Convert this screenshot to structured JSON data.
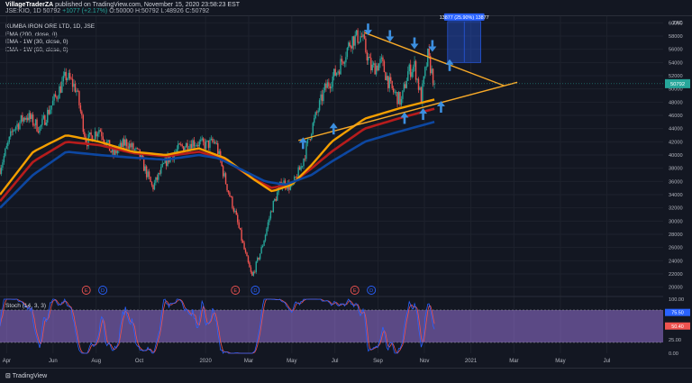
{
  "header": {
    "user": "VillageTraderZA",
    "published": "published on TradingView.com, November 15, 2020 23:58:23 EST",
    "symbol_line": "JSE:KIO, 1D",
    "last": "50792",
    "change": "+1077 (+2.17%)",
    "ohlc": "O:50000  H:50792  L:48926  C:50792"
  },
  "indicators": [
    "KUMBA IRON ORE LTD, 1D, JSE",
    "EMA (200, close, 0)",
    "EMA - 1W (30, close, 0)",
    "EMA - 1W (60, close, 0)"
  ],
  "stoch_label": "Stoch (14, 3, 3)",
  "footer": {
    "brand": "TradingView"
  },
  "chart_data": {
    "type": "candlestick",
    "currency": "ZAC",
    "ylim": [
      19000,
      61000
    ],
    "price_ticks": [
      20000,
      22000,
      24000,
      26000,
      28000,
      30000,
      32000,
      34000,
      36000,
      38000,
      40000,
      42000,
      44000,
      46000,
      48000,
      50000,
      52000,
      54000,
      56000,
      58000,
      60000
    ],
    "last_price": 50792,
    "x_labels": [
      "Apr",
      "Jun",
      "Aug",
      "Oct",
      "2020",
      "Mar",
      "May",
      "Jul",
      "Sep",
      "Nov",
      "2021",
      "Mar",
      "May",
      "Jul"
    ],
    "x_positions": [
      0.01,
      0.08,
      0.145,
      0.21,
      0.31,
      0.375,
      0.44,
      0.505,
      0.57,
      0.64,
      0.71,
      0.775,
      0.845,
      0.915
    ],
    "price_anchors": [
      [
        0.0,
        38000
      ],
      [
        0.02,
        44000
      ],
      [
        0.04,
        46000
      ],
      [
        0.06,
        44000
      ],
      [
        0.08,
        48000
      ],
      [
        0.1,
        52000
      ],
      [
        0.115,
        50000
      ],
      [
        0.13,
        42000
      ],
      [
        0.15,
        44000
      ],
      [
        0.17,
        40000
      ],
      [
        0.19,
        42000
      ],
      [
        0.21,
        40000
      ],
      [
        0.23,
        35000
      ],
      [
        0.25,
        39000
      ],
      [
        0.27,
        41000
      ],
      [
        0.29,
        42000
      ],
      [
        0.31,
        41500
      ],
      [
        0.325,
        42000
      ],
      [
        0.34,
        36000
      ],
      [
        0.355,
        31000
      ],
      [
        0.37,
        25000
      ],
      [
        0.38,
        21500
      ],
      [
        0.395,
        26000
      ],
      [
        0.41,
        32000
      ],
      [
        0.425,
        36000
      ],
      [
        0.44,
        35000
      ],
      [
        0.455,
        38500
      ],
      [
        0.47,
        44000
      ],
      [
        0.49,
        50000
      ],
      [
        0.51,
        53000
      ],
      [
        0.53,
        57500
      ],
      [
        0.545,
        58000
      ],
      [
        0.56,
        53000
      ],
      [
        0.575,
        54000
      ],
      [
        0.59,
        50000
      ],
      [
        0.605,
        48000
      ],
      [
        0.615,
        52500
      ],
      [
        0.625,
        53500
      ],
      [
        0.635,
        48500
      ],
      [
        0.645,
        55000
      ],
      [
        0.655,
        50800
      ]
    ],
    "ema200": [
      [
        0.0,
        32000
      ],
      [
        0.05,
        37000
      ],
      [
        0.1,
        40500
      ],
      [
        0.15,
        40000
      ],
      [
        0.2,
        39600
      ],
      [
        0.25,
        39300
      ],
      [
        0.3,
        40000
      ],
      [
        0.33,
        39500
      ],
      [
        0.36,
        38000
      ],
      [
        0.4,
        36000
      ],
      [
        0.43,
        35500
      ],
      [
        0.47,
        37000
      ],
      [
        0.5,
        39000
      ],
      [
        0.55,
        42000
      ],
      [
        0.6,
        43500
      ],
      [
        0.655,
        45000
      ]
    ],
    "ema_w30": [
      [
        0.0,
        34000
      ],
      [
        0.05,
        40500
      ],
      [
        0.1,
        43000
      ],
      [
        0.15,
        42000
      ],
      [
        0.2,
        40500
      ],
      [
        0.25,
        40000
      ],
      [
        0.3,
        41000
      ],
      [
        0.34,
        39500
      ],
      [
        0.38,
        36500
      ],
      [
        0.41,
        34500
      ],
      [
        0.44,
        35500
      ],
      [
        0.47,
        38500
      ],
      [
        0.5,
        42000
      ],
      [
        0.55,
        45500
      ],
      [
        0.6,
        47000
      ],
      [
        0.655,
        48400
      ]
    ],
    "ema_w60": [
      [
        0.0,
        33000
      ],
      [
        0.05,
        39000
      ],
      [
        0.1,
        42000
      ],
      [
        0.15,
        41500
      ],
      [
        0.2,
        40300
      ],
      [
        0.25,
        39800
      ],
      [
        0.3,
        40500
      ],
      [
        0.34,
        39300
      ],
      [
        0.38,
        36500
      ],
      [
        0.41,
        35000
      ],
      [
        0.44,
        35700
      ],
      [
        0.47,
        38000
      ],
      [
        0.5,
        40500
      ],
      [
        0.55,
        44000
      ],
      [
        0.6,
        45500
      ],
      [
        0.655,
        47000
      ]
    ],
    "trendlines": [
      {
        "name": "resistance",
        "from": [
          0.55,
          58500
        ],
        "to": [
          0.76,
          50500
        ]
      },
      {
        "name": "support",
        "from": [
          0.45,
          42200
        ],
        "to": [
          0.78,
          51000
        ]
      }
    ],
    "measure_box": {
      "label": "13877 (25.90%) 13877",
      "x1": 0.675,
      "x2": 0.725,
      "y1": 54000,
      "y2": 60200
    },
    "events": [
      {
        "x": 0.13,
        "label": "E"
      },
      {
        "x": 0.155,
        "label": "D"
      },
      {
        "x": 0.355,
        "label": "E"
      },
      {
        "x": 0.385,
        "label": "D"
      },
      {
        "x": 0.535,
        "label": "E"
      },
      {
        "x": 0.56,
        "label": "D"
      }
    ],
    "arrows_down": [
      [
        0.555,
        58800
      ],
      [
        0.588,
        57800
      ],
      [
        0.625,
        56700
      ],
      [
        0.652,
        56300
      ]
    ],
    "arrows_up": [
      [
        0.457,
        42000
      ],
      [
        0.503,
        44200
      ],
      [
        0.61,
        45800
      ],
      [
        0.638,
        46400
      ],
      [
        0.665,
        47500
      ],
      [
        0.678,
        53800
      ]
    ],
    "stoch": {
      "ylim": [
        0,
        100
      ],
      "ticks": [
        0,
        25,
        50,
        75,
        100
      ],
      "upper": 80,
      "lower": 20,
      "last": [
        75.5,
        50.4
      ]
    }
  }
}
